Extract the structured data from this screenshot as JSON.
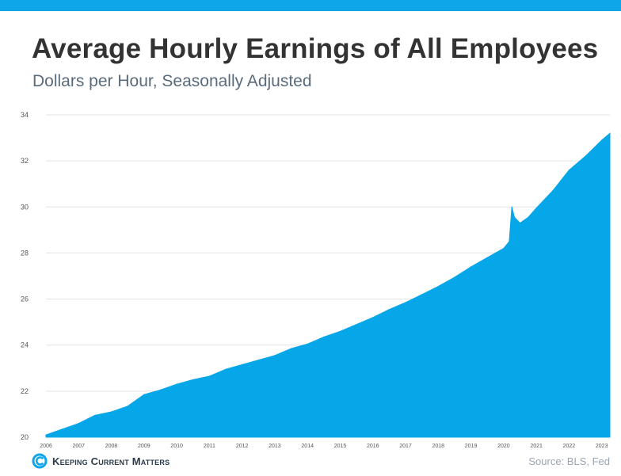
{
  "header": {
    "title": "Average Hourly Earnings of All Employees",
    "subtitle": "Dollars per Hour, Seasonally Adjusted"
  },
  "footer": {
    "brand": "Keeping Current Matters",
    "source": "Source: BLS, Fed"
  },
  "colors": {
    "accent": "#0ea5e9",
    "area_fill": "#06a7e8",
    "grid": "#e3e3e3"
  },
  "chart_data": {
    "type": "area",
    "title": "Average Hourly Earnings of All Employees",
    "subtitle": "Dollars per Hour, Seasonally Adjusted",
    "xlabel": "",
    "ylabel": "",
    "ylim": [
      20,
      34
    ],
    "xlim": [
      2006.0,
      2023.25
    ],
    "yticks": [
      20,
      22,
      24,
      26,
      28,
      30,
      32,
      34
    ],
    "xticks": [
      "2006",
      "2007",
      "2008",
      "2009",
      "2010",
      "2011",
      "2012",
      "2013",
      "2014",
      "2015",
      "2016",
      "2017",
      "2018",
      "2019",
      "2020",
      "2021",
      "2022",
      "2023"
    ],
    "grid": true,
    "series": [
      {
        "name": "Average Hourly Earnings",
        "x": [
          2006.0,
          2006.5,
          2007.0,
          2007.5,
          2008.0,
          2008.5,
          2009.0,
          2009.5,
          2010.0,
          2010.5,
          2011.0,
          2011.5,
          2012.0,
          2012.5,
          2013.0,
          2013.5,
          2014.0,
          2014.5,
          2015.0,
          2015.5,
          2016.0,
          2016.5,
          2017.0,
          2017.5,
          2018.0,
          2018.5,
          2019.0,
          2019.5,
          2020.0,
          2020.17,
          2020.25,
          2020.33,
          2020.5,
          2020.75,
          2021.0,
          2021.5,
          2022.0,
          2022.5,
          2023.0,
          2023.25
        ],
        "values": [
          20.1,
          20.35,
          20.6,
          20.95,
          21.1,
          21.35,
          21.85,
          22.05,
          22.3,
          22.5,
          22.65,
          22.95,
          23.15,
          23.35,
          23.55,
          23.85,
          24.05,
          24.35,
          24.6,
          24.9,
          25.2,
          25.55,
          25.85,
          26.2,
          26.55,
          26.95,
          27.4,
          27.8,
          28.2,
          28.5,
          30.0,
          29.55,
          29.3,
          29.55,
          29.95,
          30.7,
          31.6,
          32.2,
          32.9,
          33.2
        ]
      }
    ]
  }
}
